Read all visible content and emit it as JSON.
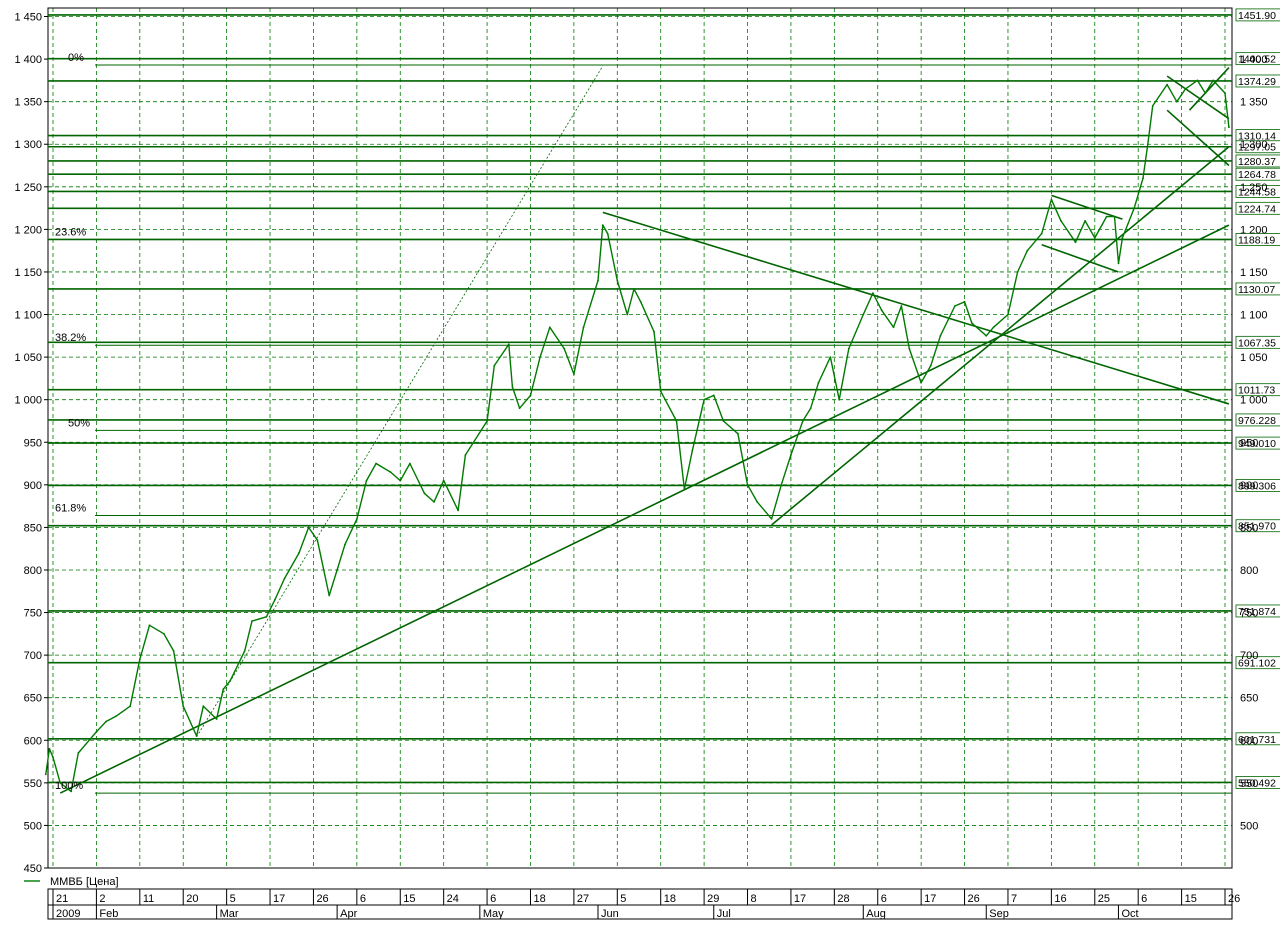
{
  "chart_data": {
    "type": "line",
    "title": "",
    "legend": "ММВБ [Цена]",
    "legend_placement": "bottom-left",
    "grid": true,
    "ylim": [
      450,
      1460
    ],
    "y_ticks": [
      450,
      500,
      550,
      600,
      650,
      700,
      750,
      800,
      850,
      900,
      950,
      1000,
      1050,
      1100,
      1150,
      1200,
      1250,
      1300,
      1350,
      1400,
      1450
    ],
    "y_tick_labels": [
      "450",
      "500",
      "550",
      "600",
      "650",
      "700",
      "750",
      "800",
      "850",
      "900",
      "950",
      "1 000",
      "1 050",
      "1 100",
      "1 150",
      "1 200",
      "1 250",
      "1 300",
      "1 350",
      "1 400",
      "1 450"
    ],
    "x_date_ticks": [
      {
        "date": "2009-01-21",
        "label": "21"
      },
      {
        "date": "2009-02-02",
        "label": "2"
      },
      {
        "date": "2009-02-11",
        "label": "11"
      },
      {
        "date": "2009-02-20",
        "label": "20"
      },
      {
        "date": "2009-03-05",
        "label": "5"
      },
      {
        "date": "2009-03-17",
        "label": "17"
      },
      {
        "date": "2009-03-26",
        "label": "26"
      },
      {
        "date": "2009-04-06",
        "label": "6"
      },
      {
        "date": "2009-04-15",
        "label": "15"
      },
      {
        "date": "2009-04-24",
        "label": "24"
      },
      {
        "date": "2009-05-06",
        "label": "6"
      },
      {
        "date": "2009-05-18",
        "label": "18"
      },
      {
        "date": "2009-05-27",
        "label": "27"
      },
      {
        "date": "2009-06-05",
        "label": "5"
      },
      {
        "date": "2009-06-18",
        "label": "18"
      },
      {
        "date": "2009-06-29",
        "label": "29"
      },
      {
        "date": "2009-07-08",
        "label": "8"
      },
      {
        "date": "2009-07-17",
        "label": "17"
      },
      {
        "date": "2009-07-28",
        "label": "28"
      },
      {
        "date": "2009-08-06",
        "label": "6"
      },
      {
        "date": "2009-08-17",
        "label": "17"
      },
      {
        "date": "2009-08-26",
        "label": "26"
      },
      {
        "date": "2009-09-07",
        "label": "7"
      },
      {
        "date": "2009-09-16",
        "label": "16"
      },
      {
        "date": "2009-09-25",
        "label": "25"
      },
      {
        "date": "2009-10-06",
        "label": "6"
      },
      {
        "date": "2009-10-15",
        "label": "15"
      },
      {
        "date": "2009-10-26",
        "label": "26"
      }
    ],
    "x_period_labels": [
      {
        "date": "2009-01-21",
        "label": "2009"
      },
      {
        "date": "2009-02-02",
        "label": "Feb"
      },
      {
        "date": "2009-03-02",
        "label": "Mar"
      },
      {
        "date": "2009-04-01",
        "label": "Apr"
      },
      {
        "date": "2009-05-04",
        "label": "May"
      },
      {
        "date": "2009-06-01",
        "label": "Jun"
      },
      {
        "date": "2009-07-01",
        "label": "Jul"
      },
      {
        "date": "2009-08-03",
        "label": "Aug"
      },
      {
        "date": "2009-09-01",
        "label": "Sep"
      },
      {
        "date": "2009-10-01",
        "label": "Oct"
      }
    ],
    "series": [
      {
        "name": "ММВБ [Цена]",
        "points": [
          [
            "2009-01-19",
            560
          ],
          [
            "2009-01-20",
            590
          ],
          [
            "2009-01-21",
            580
          ],
          [
            "2009-01-23",
            550
          ],
          [
            "2009-01-26",
            540
          ],
          [
            "2009-01-28",
            585
          ],
          [
            "2009-02-02",
            610
          ],
          [
            "2009-02-04",
            622
          ],
          [
            "2009-02-06",
            628
          ],
          [
            "2009-02-09",
            640
          ],
          [
            "2009-02-11",
            695
          ],
          [
            "2009-02-13",
            735
          ],
          [
            "2009-02-16",
            725
          ],
          [
            "2009-02-18",
            705
          ],
          [
            "2009-02-20",
            640
          ],
          [
            "2009-02-24",
            605
          ],
          [
            "2009-02-26",
            640
          ],
          [
            "2009-03-02",
            625
          ],
          [
            "2009-03-04",
            660
          ],
          [
            "2009-03-06",
            670
          ],
          [
            "2009-03-10",
            705
          ],
          [
            "2009-03-12",
            740
          ],
          [
            "2009-03-16",
            745
          ],
          [
            "2009-03-18",
            765
          ],
          [
            "2009-03-20",
            790
          ],
          [
            "2009-03-23",
            820
          ],
          [
            "2009-03-25",
            850
          ],
          [
            "2009-03-27",
            835
          ],
          [
            "2009-03-30",
            770
          ],
          [
            "2009-04-01",
            800
          ],
          [
            "2009-04-03",
            830
          ],
          [
            "2009-04-06",
            860
          ],
          [
            "2009-04-08",
            905
          ],
          [
            "2009-04-10",
            925
          ],
          [
            "2009-04-13",
            915
          ],
          [
            "2009-04-15",
            905
          ],
          [
            "2009-04-17",
            925
          ],
          [
            "2009-04-20",
            890
          ],
          [
            "2009-04-22",
            880
          ],
          [
            "2009-04-24",
            905
          ],
          [
            "2009-04-28",
            870
          ],
          [
            "2009-04-30",
            935
          ],
          [
            "2009-05-06",
            975
          ],
          [
            "2009-05-08",
            1040
          ],
          [
            "2009-05-12",
            1065
          ],
          [
            "2009-05-13",
            1015
          ],
          [
            "2009-05-15",
            990
          ],
          [
            "2009-05-18",
            1005
          ],
          [
            "2009-05-20",
            1050
          ],
          [
            "2009-05-22",
            1085
          ],
          [
            "2009-05-25",
            1060
          ],
          [
            "2009-05-27",
            1030
          ],
          [
            "2009-05-29",
            1085
          ],
          [
            "2009-06-01",
            1140
          ],
          [
            "2009-06-02",
            1205
          ],
          [
            "2009-06-03",
            1195
          ],
          [
            "2009-06-05",
            1140
          ],
          [
            "2009-06-08",
            1100
          ],
          [
            "2009-06-10",
            1130
          ],
          [
            "2009-06-12",
            1115
          ],
          [
            "2009-06-16",
            1080
          ],
          [
            "2009-06-18",
            1010
          ],
          [
            "2009-06-22",
            975
          ],
          [
            "2009-06-24",
            895
          ],
          [
            "2009-06-26",
            940
          ],
          [
            "2009-06-29",
            1000
          ],
          [
            "2009-07-01",
            1005
          ],
          [
            "2009-07-03",
            975
          ],
          [
            "2009-07-06",
            960
          ],
          [
            "2009-07-08",
            900
          ],
          [
            "2009-07-10",
            880
          ],
          [
            "2009-07-13",
            860
          ],
          [
            "2009-07-15",
            900
          ],
          [
            "2009-07-17",
            935
          ],
          [
            "2009-07-20",
            975
          ],
          [
            "2009-07-22",
            990
          ],
          [
            "2009-07-24",
            1020
          ],
          [
            "2009-07-27",
            1050
          ],
          [
            "2009-07-29",
            1000
          ],
          [
            "2009-07-31",
            1060
          ],
          [
            "2009-08-03",
            1100
          ],
          [
            "2009-08-05",
            1125
          ],
          [
            "2009-08-07",
            1105
          ],
          [
            "2009-08-10",
            1085
          ],
          [
            "2009-08-12",
            1110
          ],
          [
            "2009-08-14",
            1060
          ],
          [
            "2009-08-17",
            1020
          ],
          [
            "2009-08-19",
            1040
          ],
          [
            "2009-08-21",
            1075
          ],
          [
            "2009-08-24",
            1110
          ],
          [
            "2009-08-26",
            1115
          ],
          [
            "2009-08-28",
            1090
          ],
          [
            "2009-09-01",
            1075
          ],
          [
            "2009-09-03",
            1085
          ],
          [
            "2009-09-07",
            1100
          ],
          [
            "2009-09-09",
            1150
          ],
          [
            "2009-09-11",
            1175
          ],
          [
            "2009-09-14",
            1195
          ],
          [
            "2009-09-16",
            1235
          ],
          [
            "2009-09-18",
            1210
          ],
          [
            "2009-09-21",
            1185
          ],
          [
            "2009-09-23",
            1210
          ],
          [
            "2009-09-25",
            1190
          ],
          [
            "2009-09-28",
            1215
          ],
          [
            "2009-09-30",
            1215
          ],
          [
            "2009-10-01",
            1160
          ],
          [
            "2009-10-02",
            1190
          ],
          [
            "2009-10-05",
            1225
          ],
          [
            "2009-10-07",
            1260
          ],
          [
            "2009-10-08",
            1300
          ],
          [
            "2009-10-09",
            1345
          ],
          [
            "2009-10-12",
            1370
          ],
          [
            "2009-10-14",
            1350
          ],
          [
            "2009-10-16",
            1365
          ],
          [
            "2009-10-19",
            1375
          ],
          [
            "2009-10-21",
            1360
          ],
          [
            "2009-10-23",
            1375
          ],
          [
            "2009-10-26",
            1360
          ],
          [
            "2009-10-27",
            1320
          ]
        ]
      }
    ],
    "horizontal_levels": [
      {
        "value": 1451.9,
        "label": "1451.90"
      },
      {
        "value": 1400.52,
        "label": "1400.52"
      },
      {
        "value": 1374.29,
        "label": "1374.29"
      },
      {
        "value": 1310.14,
        "label": "1310.14"
      },
      {
        "value": 1297.05,
        "label": "1297.05"
      },
      {
        "value": 1280.37,
        "label": "1280.37"
      },
      {
        "value": 1264.78,
        "label": "1264.78"
      },
      {
        "value": 1244.58,
        "label": "1244.58"
      },
      {
        "value": 1224.74,
        "label": "1224.74"
      },
      {
        "value": 1188.19,
        "label": "1188.19"
      },
      {
        "value": 1130.07,
        "label": "1130.07"
      },
      {
        "value": 1067.35,
        "label": "1067.35"
      },
      {
        "value": 1011.73,
        "label": "1011.73"
      },
      {
        "value": 976.228,
        "label": "976.228"
      },
      {
        "value": 949.01,
        "label": "949.010"
      },
      {
        "value": 899.306,
        "label": "899.306"
      },
      {
        "value": 851.97,
        "label": "851.970"
      },
      {
        "value": 751.874,
        "label": "751.874"
      },
      {
        "value": 691.102,
        "label": "691.102"
      },
      {
        "value": 601.731,
        "label": "601.731"
      },
      {
        "value": 550.492,
        "label": "550.492"
      }
    ],
    "fibonacci_levels": [
      {
        "value": 1393,
        "label": "0%"
      },
      {
        "value": 1188,
        "label": "23.6%"
      },
      {
        "value": 1064,
        "label": "38.2%"
      },
      {
        "value": 964,
        "label": "50%"
      },
      {
        "value": 864,
        "label": "61.8%"
      },
      {
        "value": 538,
        "label": "100%"
      }
    ],
    "trendlines": [
      {
        "from": [
          "2009-01-23",
          538
        ],
        "to": [
          "2009-10-27",
          1205
        ]
      },
      {
        "from": [
          "2009-02-24",
          604
        ],
        "to": [
          "2009-06-02",
          1392
        ]
      },
      {
        "from": [
          "2009-06-02",
          1220
        ],
        "to": [
          "2009-10-27",
          995
        ]
      },
      {
        "from": [
          "2009-07-13",
          853
        ],
        "to": [
          "2009-10-27",
          1297
        ]
      },
      {
        "from": [
          "2009-09-14",
          1182
        ],
        "to": [
          "2009-10-01",
          1150
        ]
      },
      {
        "from": [
          "2009-09-16",
          1240
        ],
        "to": [
          "2009-10-02",
          1212
        ]
      },
      {
        "from": [
          "2009-10-12",
          1380
        ],
        "to": [
          "2009-10-27",
          1330
        ]
      },
      {
        "from": [
          "2009-10-12",
          1340
        ],
        "to": [
          "2009-10-27",
          1275
        ]
      },
      {
        "from": [
          "2009-10-17",
          1340
        ],
        "to": [
          "2009-10-27",
          1390
        ]
      }
    ]
  }
}
